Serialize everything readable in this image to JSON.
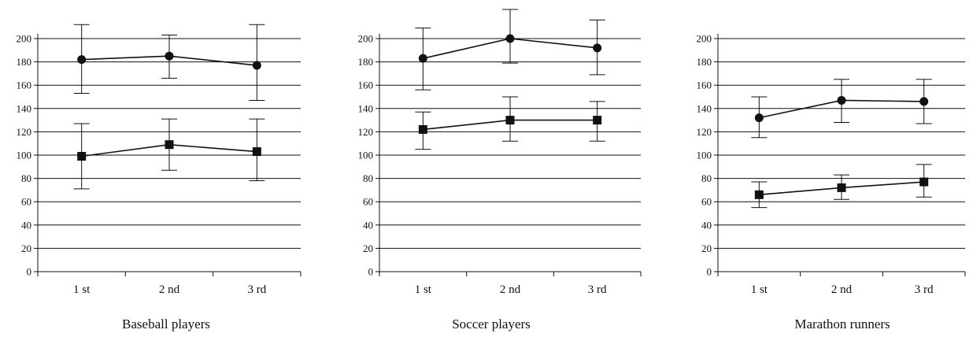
{
  "chart_data": [
    {
      "type": "line",
      "title": "Baseball players",
      "categories": [
        "1 st",
        "2 nd",
        "3 rd"
      ],
      "ylim": [
        0,
        200
      ],
      "yticks": [
        0,
        20,
        40,
        60,
        80,
        100,
        120,
        140,
        160,
        180,
        200
      ],
      "grid": true,
      "series": [
        {
          "marker": "circle",
          "values": [
            182,
            185,
            177
          ],
          "err_low": [
            153,
            166,
            147
          ],
          "err_high": [
            212,
            203,
            212
          ]
        },
        {
          "marker": "square",
          "values": [
            99,
            109,
            103
          ],
          "err_low": [
            71,
            87,
            78
          ],
          "err_high": [
            127,
            131,
            131
          ]
        }
      ]
    },
    {
      "type": "line",
      "title": "Soccer players",
      "categories": [
        "1 st",
        "2 nd",
        "3 rd"
      ],
      "ylim": [
        0,
        200
      ],
      "yticks": [
        0,
        20,
        40,
        60,
        80,
        100,
        120,
        140,
        160,
        180,
        200
      ],
      "grid": true,
      "series": [
        {
          "marker": "circle",
          "values": [
            183,
            200,
            192
          ],
          "err_low": [
            156,
            179,
            169
          ],
          "err_high": [
            209,
            225,
            216
          ]
        },
        {
          "marker": "square",
          "values": [
            122,
            130,
            130
          ],
          "err_low": [
            105,
            112,
            112
          ],
          "err_high": [
            137,
            150,
            146
          ]
        }
      ]
    },
    {
      "type": "line",
      "title": "Marathon runners",
      "categories": [
        "1 st",
        "2 nd",
        "3 rd"
      ],
      "ylim": [
        0,
        200
      ],
      "yticks": [
        0,
        20,
        40,
        60,
        80,
        100,
        120,
        140,
        160,
        180,
        200
      ],
      "grid": true,
      "series": [
        {
          "marker": "circle",
          "values": [
            132,
            147,
            146
          ],
          "err_low": [
            115,
            128,
            127
          ],
          "err_high": [
            150,
            165,
            165
          ]
        },
        {
          "marker": "square",
          "values": [
            66,
            72,
            77
          ],
          "err_low": [
            55,
            62,
            64
          ],
          "err_high": [
            77,
            83,
            92
          ]
        }
      ]
    }
  ]
}
